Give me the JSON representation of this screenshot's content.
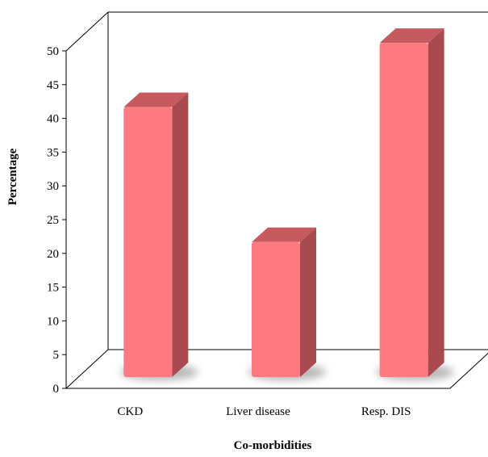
{
  "chart_data": {
    "type": "bar",
    "categories": [
      "CKD",
      "Liver disease",
      "Resp. DIS"
    ],
    "values": [
      40,
      20,
      49.5
    ],
    "xlabel": "Co-morbidities",
    "ylabel": "Percentage",
    "ylim": [
      0,
      50
    ],
    "yticks": [
      "0",
      "5",
      "10",
      "15",
      "20",
      "25",
      "30",
      "35",
      "40",
      "45",
      "50"
    ],
    "style": "3d",
    "grid": false,
    "legend": "none",
    "colors": {
      "bar_front": "#FF7A80",
      "bar_side": "#A84A4F",
      "bar_top": "#C65A5F",
      "axis": "#000000"
    }
  }
}
